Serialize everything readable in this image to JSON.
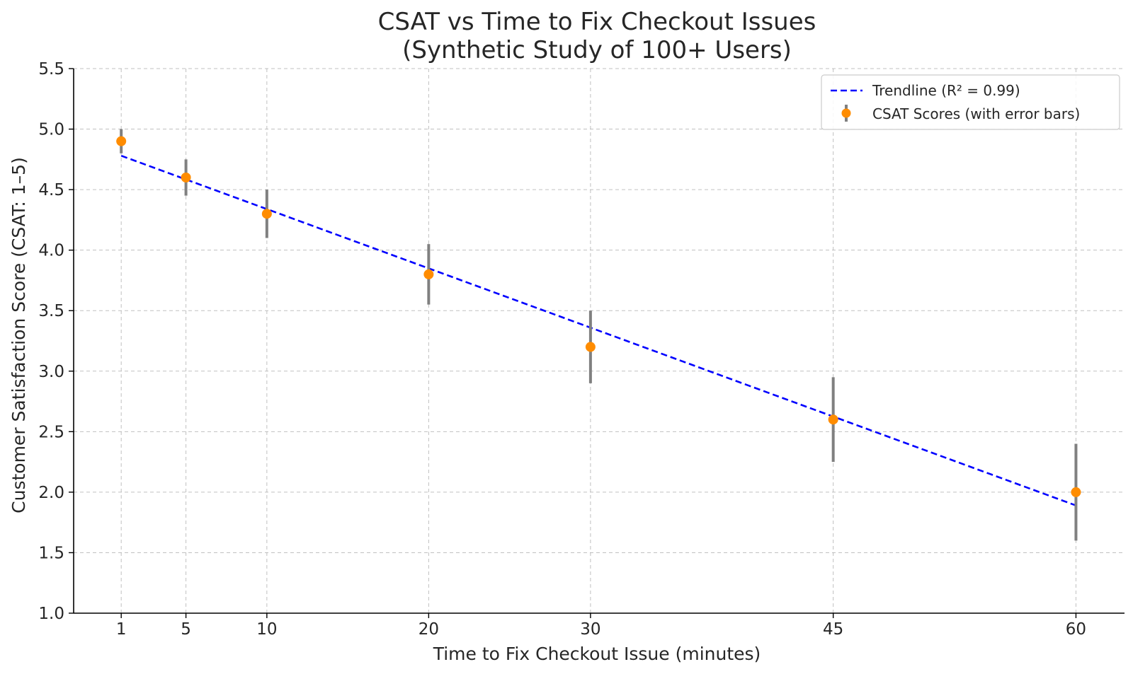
{
  "chart_data": {
    "type": "scatter",
    "title": [
      "CSAT vs Time to Fix Checkout Issues",
      "(Synthetic Study of 100+ Users)"
    ],
    "xlabel": "Time to Fix Checkout Issue (minutes)",
    "ylabel": "Customer Satisfaction Score (CSAT: 1–5)",
    "xlim": [
      -1.94,
      63.0
    ],
    "ylim": [
      1.0,
      5.5
    ],
    "xticks": [
      1,
      5,
      10,
      20,
      30,
      45,
      60
    ],
    "yticks": [
      "1.0",
      "1.5",
      "2.0",
      "2.5",
      "3.0",
      "3.5",
      "4.0",
      "4.5",
      "5.0",
      "5.5"
    ],
    "grid": true,
    "legend_position": "top-right",
    "series": [
      {
        "name": "CSAT Scores (with error bars)",
        "kind": "errorbar",
        "color": "#ff8c00",
        "error_color": "#808080",
        "x": [
          1,
          5,
          10,
          20,
          30,
          45,
          60
        ],
        "y": [
          4.9,
          4.6,
          4.3,
          3.8,
          3.2,
          2.6,
          2.0
        ],
        "yerr": [
          0.1,
          0.15,
          0.2,
          0.25,
          0.3,
          0.35,
          0.4
        ]
      },
      {
        "name": "Trendline (R² = 0.99)",
        "kind": "line",
        "style": "dashed",
        "color": "#0000ff",
        "x": [
          1,
          60
        ],
        "y": [
          4.78,
          1.89
        ]
      }
    ]
  }
}
